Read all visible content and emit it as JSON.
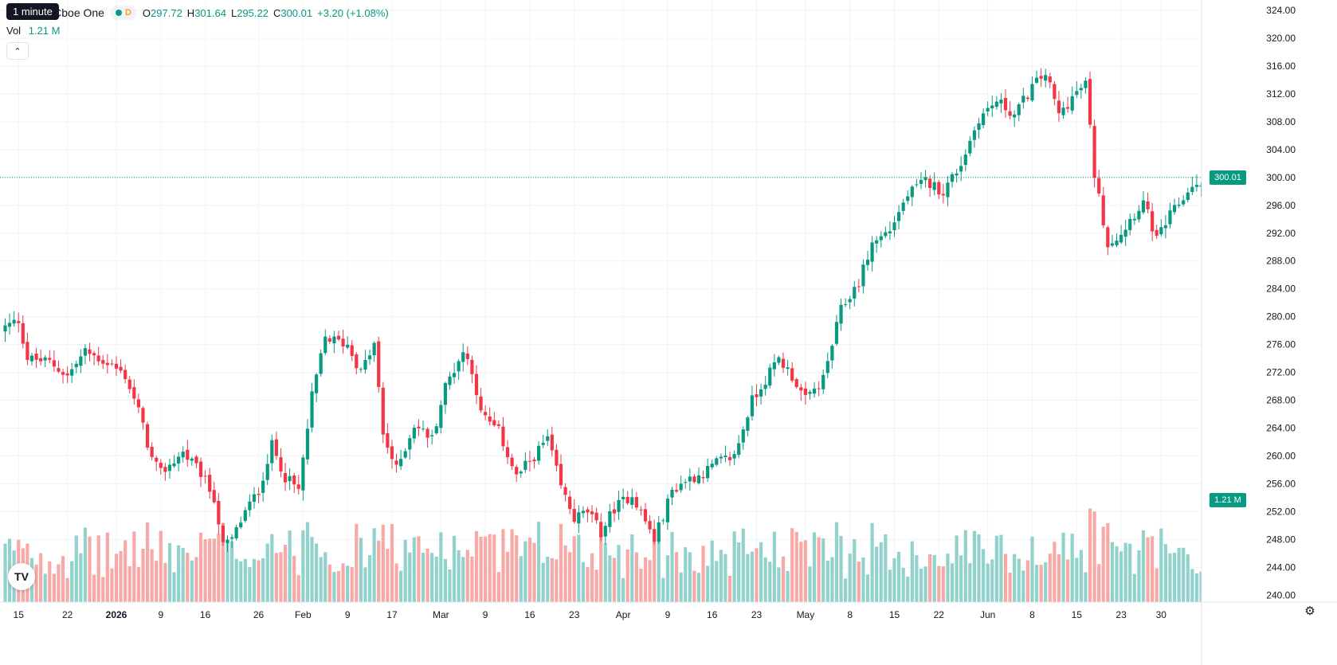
{
  "legend": {
    "title": "Inc · 4h · Cboe One",
    "badge": "D",
    "open_label": "O",
    "open": "297.72",
    "high_label": "H",
    "high": "301.64",
    "low_label": "L",
    "low": "295.22",
    "close_label": "C",
    "close": "300.01",
    "change": "+3.20 (+1.08%)"
  },
  "tooltip": "1 minute",
  "volume": {
    "label": "Vol",
    "value": "1.21 M"
  },
  "price_badge": "300.01",
  "volume_badge": "1.21 M",
  "colors": {
    "up": "#089981",
    "down": "#f23645",
    "vol_up": "#92d2cc",
    "vol_down": "#f7a9a7",
    "grid": "#f0f3fa"
  },
  "icons": {
    "collapse": "chevron-up-icon",
    "logo": "tradingview-logo",
    "settings": "gear-icon"
  },
  "chart_data": {
    "type": "candlestick",
    "y_axis": {
      "ticks": [
        "324.00",
        "320.00",
        "316.00",
        "312.00",
        "308.00",
        "304.00",
        "300.00",
        "296.00",
        "292.00",
        "288.00",
        "284.00",
        "280.00",
        "276.00",
        "272.00",
        "268.00",
        "264.00",
        "260.00",
        "256.00",
        "252.00",
        "248.00",
        "244.00",
        "240.00"
      ],
      "range": [
        239.0,
        325.5
      ]
    },
    "x_axis": {
      "labels": [
        "15",
        "22",
        "2026",
        "9",
        "16",
        "26",
        "Feb",
        "9",
        "17",
        "Mar",
        "9",
        "16",
        "23",
        "Apr",
        "9",
        "16",
        "23",
        "May",
        "8",
        "15",
        "22",
        "Jun",
        "8",
        "15",
        "23",
        "30"
      ],
      "label_bars": [
        3,
        14,
        25,
        35,
        45,
        57,
        67,
        77,
        87,
        98,
        108,
        118,
        128,
        139,
        149,
        159,
        169,
        180,
        190,
        200,
        210,
        221,
        231,
        241,
        251,
        260
      ]
    },
    "keypoints": [
      [
        0,
        278.5
      ],
      [
        3,
        279.5
      ],
      [
        5,
        274.0
      ],
      [
        10,
        273.5
      ],
      [
        14,
        271.5
      ],
      [
        18,
        275.0
      ],
      [
        24,
        273.0
      ],
      [
        27,
        271.5
      ],
      [
        30,
        266.5
      ],
      [
        33,
        259.5
      ],
      [
        35,
        257.5
      ],
      [
        40,
        260.5
      ],
      [
        44,
        257.5
      ],
      [
        47,
        254.0
      ],
      [
        49,
        247.0
      ],
      [
        51,
        248.0
      ],
      [
        54,
        252.0
      ],
      [
        57,
        255.0
      ],
      [
        60,
        261.5
      ],
      [
        63,
        257.0
      ],
      [
        66,
        255.0
      ],
      [
        69,
        268.5
      ],
      [
        72,
        277.0
      ],
      [
        77,
        276.0
      ],
      [
        80,
        272.0
      ],
      [
        83,
        276.0
      ],
      [
        85,
        263.0
      ],
      [
        88,
        258.0
      ],
      [
        92,
        264.5
      ],
      [
        96,
        262.5
      ],
      [
        99,
        270.0
      ],
      [
        103,
        275.0
      ],
      [
        105,
        272.5
      ],
      [
        107,
        266.0
      ],
      [
        111,
        263.5
      ],
      [
        115,
        257.0
      ],
      [
        119,
        260.0
      ],
      [
        122,
        262.5
      ],
      [
        125,
        255.5
      ],
      [
        128,
        251.0
      ],
      [
        131,
        252.0
      ],
      [
        134,
        249.0
      ],
      [
        137,
        252.5
      ],
      [
        141,
        254.5
      ],
      [
        146,
        248.0
      ],
      [
        150,
        255.0
      ],
      [
        153,
        256.5
      ],
      [
        157,
        257.5
      ],
      [
        160,
        259.0
      ],
      [
        164,
        260.0
      ],
      [
        168,
        268.0
      ],
      [
        171,
        271.0
      ],
      [
        174,
        274.0
      ],
      [
        177,
        271.5
      ],
      [
        180,
        268.0
      ],
      [
        184,
        271.0
      ],
      [
        188,
        281.0
      ],
      [
        192,
        285.0
      ],
      [
        195,
        290.5
      ],
      [
        199,
        292.5
      ],
      [
        203,
        297.5
      ],
      [
        207,
        299.5
      ],
      [
        211,
        298.0
      ],
      [
        215,
        302.0
      ],
      [
        219,
        308.5
      ],
      [
        223,
        311.0
      ],
      [
        227,
        309.0
      ],
      [
        231,
        313.0
      ],
      [
        234,
        315.0
      ],
      [
        237,
        309.0
      ],
      [
        240,
        311.5
      ],
      [
        243,
        313.5
      ],
      [
        245,
        300.5
      ],
      [
        248,
        290.5
      ],
      [
        251,
        292.0
      ],
      [
        253,
        294.0
      ],
      [
        256,
        296.5
      ],
      [
        259,
        291.0
      ],
      [
        262,
        294.5
      ],
      [
        265,
        297.0
      ],
      [
        267,
        299.0
      ],
      [
        270,
        298.0
      ],
      [
        272,
        297.5
      ],
      [
        275,
        298.5
      ],
      [
        278,
        299.0
      ],
      [
        279,
        300.01
      ]
    ],
    "volume_range": [
      0,
      1.85
    ],
    "last": {
      "open": 297.72,
      "high": 301.64,
      "low": 295.22,
      "close": 300.01,
      "volume": 1.21
    }
  }
}
